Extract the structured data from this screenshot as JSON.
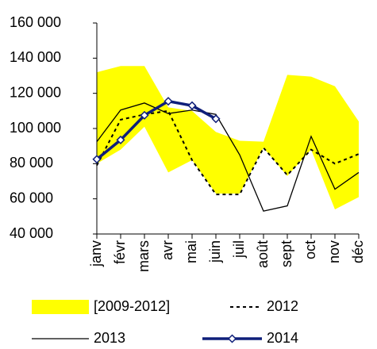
{
  "chart_data": {
    "type": "line",
    "categories": [
      "janv",
      "févr",
      "mars",
      "avr",
      "mai",
      "juin",
      "juil",
      "août",
      "sept",
      "oct",
      "nov",
      "déc"
    ],
    "ylim": [
      40000,
      160000
    ],
    "yticks": [
      {
        "value": 40000,
        "label": "40 000"
      },
      {
        "value": 60000,
        "label": "60 000"
      },
      {
        "value": 80000,
        "label": "80 000"
      },
      {
        "value": 100000,
        "label": "100 000"
      },
      {
        "value": 120000,
        "label": "120 000"
      },
      {
        "value": 140000,
        "label": "140 000"
      },
      {
        "value": 160000,
        "label": "160 000"
      }
    ],
    "series": [
      {
        "name": "[2009-2012]",
        "color": "#ffff00",
        "style": "band",
        "high": [
          132000,
          135500,
          135500,
          112000,
          110000,
          98000,
          93000,
          92500,
          130500,
          129500,
          124000,
          104000
        ],
        "low": [
          80000,
          88000,
          101000,
          75000,
          82000,
          63000,
          63000,
          89000,
          73000,
          88000,
          54000,
          61000
        ]
      },
      {
        "name": "2012",
        "color": "#000000",
        "style": "dotted",
        "width": 2,
        "values": [
          79000,
          105000,
          108000,
          110000,
          82000,
          62500,
          62500,
          89000,
          73500,
          88000,
          80000,
          85500
        ]
      },
      {
        "name": "2013",
        "color": "#000000",
        "style": "solid",
        "width": 1.3,
        "values": [
          92500,
          110500,
          114500,
          108500,
          110500,
          108000,
          85000,
          53000,
          56000,
          95500,
          65500,
          75000
        ]
      },
      {
        "name": "2014",
        "color": "#0f1f7a",
        "style": "solid",
        "width": 3.5,
        "marker": "diamond",
        "values": [
          82500,
          93500,
          107500,
          115500,
          113000,
          105500,
          null,
          null,
          null,
          null,
          null,
          null
        ]
      }
    ]
  }
}
